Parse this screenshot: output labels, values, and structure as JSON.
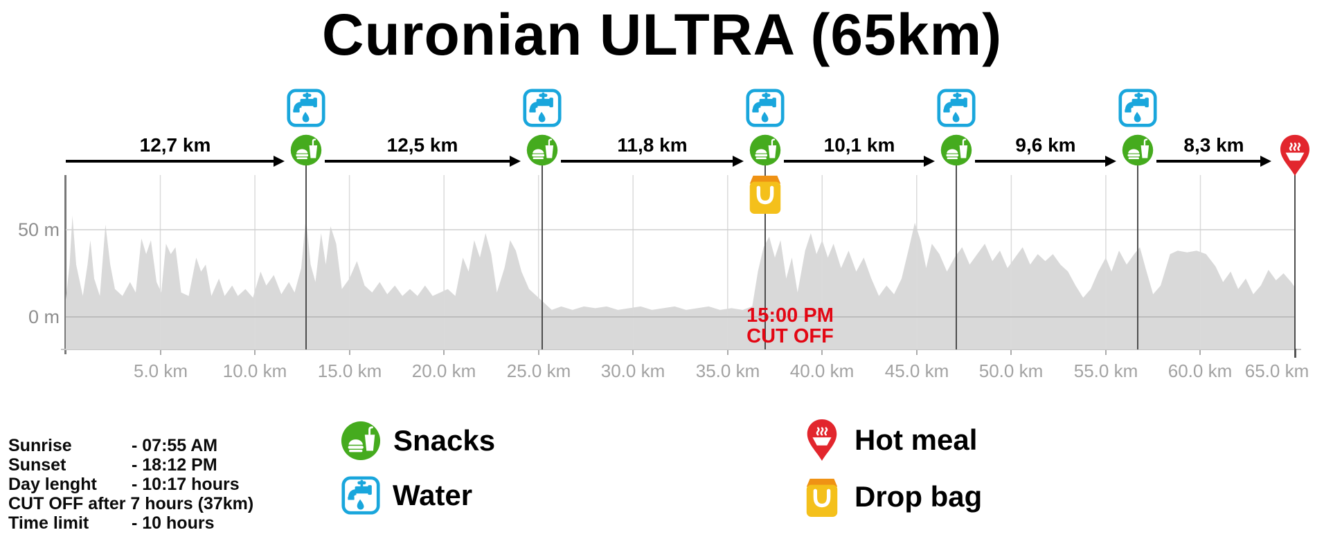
{
  "title": "Curonian ULTRA (65km)",
  "colors": {
    "snacks_green": "#45ab1e",
    "water_blue": "#19a6dc",
    "hotmeal_red": "#e2262d",
    "dropbag_yellow": "#f4c01b",
    "dropbag_orange": "#ef9214",
    "cutoff_red": "#e30613",
    "profile_fill": "#d9d9d9"
  },
  "chart_data": {
    "type": "area",
    "title": "Curonian ULTRA (65km)",
    "x_unit": "km",
    "y_unit": "m",
    "x_range": [
      0,
      65
    ],
    "y_gridlines_m": [
      0,
      50
    ],
    "y_ticks": [
      "50 m",
      "0 m"
    ],
    "x_ticks": [
      "5.0 km",
      "10.0 km",
      "15.0 km",
      "20.0 km",
      "25.0 km",
      "30.0 km",
      "35.0 km",
      "40.0 km",
      "45.0 km",
      "50.0 km",
      "55.0 km",
      "60.0 km",
      "65.0 km"
    ],
    "grid": true,
    "points": [
      [
        0,
        10
      ],
      [
        0.2,
        30
      ],
      [
        0.35,
        58
      ],
      [
        0.55,
        30
      ],
      [
        0.9,
        12
      ],
      [
        1.15,
        30
      ],
      [
        1.3,
        44
      ],
      [
        1.5,
        22
      ],
      [
        1.8,
        12
      ],
      [
        2.1,
        53
      ],
      [
        2.35,
        30
      ],
      [
        2.6,
        16
      ],
      [
        3,
        12
      ],
      [
        3.4,
        20
      ],
      [
        3.7,
        14
      ],
      [
        4,
        45
      ],
      [
        4.25,
        36
      ],
      [
        4.5,
        44
      ],
      [
        4.8,
        20
      ],
      [
        5.05,
        14
      ],
      [
        5.3,
        42
      ],
      [
        5.55,
        36
      ],
      [
        5.8,
        40
      ],
      [
        6.1,
        14
      ],
      [
        6.5,
        12
      ],
      [
        6.9,
        34
      ],
      [
        7.15,
        26
      ],
      [
        7.4,
        30
      ],
      [
        7.7,
        12
      ],
      [
        8.1,
        22
      ],
      [
        8.4,
        12
      ],
      [
        8.8,
        18
      ],
      [
        9.1,
        12
      ],
      [
        9.5,
        16
      ],
      [
        9.9,
        11
      ],
      [
        10.3,
        26
      ],
      [
        10.6,
        18
      ],
      [
        11,
        24
      ],
      [
        11.4,
        13
      ],
      [
        11.8,
        20
      ],
      [
        12.1,
        14
      ],
      [
        12.45,
        28
      ],
      [
        12.7,
        57
      ],
      [
        12.95,
        30
      ],
      [
        13.2,
        20
      ],
      [
        13.5,
        48
      ],
      [
        13.75,
        30
      ],
      [
        14,
        52
      ],
      [
        14.3,
        42
      ],
      [
        14.6,
        16
      ],
      [
        15,
        22
      ],
      [
        15.4,
        32
      ],
      [
        15.8,
        18
      ],
      [
        16.2,
        14
      ],
      [
        16.6,
        20
      ],
      [
        17,
        13
      ],
      [
        17.4,
        18
      ],
      [
        17.8,
        12
      ],
      [
        18.2,
        16
      ],
      [
        18.6,
        12
      ],
      [
        19,
        18
      ],
      [
        19.4,
        12
      ],
      [
        19.8,
        14
      ],
      [
        20.2,
        16
      ],
      [
        20.6,
        12
      ],
      [
        21,
        34
      ],
      [
        21.3,
        26
      ],
      [
        21.6,
        44
      ],
      [
        21.9,
        34
      ],
      [
        22.2,
        48
      ],
      [
        22.5,
        36
      ],
      [
        22.8,
        14
      ],
      [
        23.2,
        28
      ],
      [
        23.5,
        44
      ],
      [
        23.8,
        38
      ],
      [
        24.1,
        26
      ],
      [
        24.5,
        16
      ],
      [
        24.9,
        12
      ],
      [
        25.3,
        8
      ],
      [
        25.7,
        4
      ],
      [
        26.2,
        6
      ],
      [
        26.8,
        4
      ],
      [
        27.4,
        6
      ],
      [
        28,
        5
      ],
      [
        28.6,
        6
      ],
      [
        29.2,
        4
      ],
      [
        29.8,
        5
      ],
      [
        30.4,
        6
      ],
      [
        31,
        4
      ],
      [
        31.6,
        5
      ],
      [
        32.2,
        6
      ],
      [
        32.8,
        4
      ],
      [
        33.4,
        5
      ],
      [
        34,
        6
      ],
      [
        34.6,
        4
      ],
      [
        35.2,
        5
      ],
      [
        35.8,
        4
      ],
      [
        36.3,
        6
      ],
      [
        36.6,
        26
      ],
      [
        36.9,
        40
      ],
      [
        37.2,
        46
      ],
      [
        37.5,
        34
      ],
      [
        37.8,
        44
      ],
      [
        38.1,
        22
      ],
      [
        38.4,
        34
      ],
      [
        38.7,
        14
      ],
      [
        39.1,
        38
      ],
      [
        39.4,
        48
      ],
      [
        39.7,
        36
      ],
      [
        40,
        44
      ],
      [
        40.3,
        34
      ],
      [
        40.6,
        42
      ],
      [
        41,
        28
      ],
      [
        41.4,
        38
      ],
      [
        41.8,
        26
      ],
      [
        42.2,
        34
      ],
      [
        42.6,
        22
      ],
      [
        43,
        12
      ],
      [
        43.4,
        18
      ],
      [
        43.8,
        13
      ],
      [
        44.2,
        22
      ],
      [
        44.6,
        40
      ],
      [
        44.9,
        54
      ],
      [
        45.2,
        44
      ],
      [
        45.5,
        28
      ],
      [
        45.8,
        42
      ],
      [
        46.2,
        36
      ],
      [
        46.6,
        26
      ],
      [
        47,
        34
      ],
      [
        47.4,
        40
      ],
      [
        47.8,
        30
      ],
      [
        48.2,
        36
      ],
      [
        48.6,
        42
      ],
      [
        49,
        32
      ],
      [
        49.4,
        38
      ],
      [
        49.8,
        28
      ],
      [
        50.2,
        34
      ],
      [
        50.6,
        40
      ],
      [
        51,
        30
      ],
      [
        51.4,
        36
      ],
      [
        51.8,
        32
      ],
      [
        52.2,
        36
      ],
      [
        52.6,
        30
      ],
      [
        53,
        26
      ],
      [
        53.4,
        18
      ],
      [
        53.8,
        11
      ],
      [
        54.2,
        16
      ],
      [
        54.6,
        26
      ],
      [
        55,
        34
      ],
      [
        55.3,
        26
      ],
      [
        55.7,
        38
      ],
      [
        56.1,
        30
      ],
      [
        56.5,
        36
      ],
      [
        56.8,
        40
      ],
      [
        57.1,
        28
      ],
      [
        57.5,
        13
      ],
      [
        57.9,
        18
      ],
      [
        58.4,
        36
      ],
      [
        58.8,
        38
      ],
      [
        59.3,
        37
      ],
      [
        59.8,
        38
      ],
      [
        60.3,
        36
      ],
      [
        60.8,
        29
      ],
      [
        61.2,
        20
      ],
      [
        61.6,
        26
      ],
      [
        62,
        16
      ],
      [
        62.4,
        22
      ],
      [
        62.8,
        13
      ],
      [
        63.2,
        18
      ],
      [
        63.6,
        27
      ],
      [
        64,
        21
      ],
      [
        64.4,
        25
      ],
      [
        64.8,
        20
      ],
      [
        65,
        17
      ]
    ],
    "stations": [
      {
        "km": 12.7,
        "services": [
          "water",
          "snacks"
        ]
      },
      {
        "km": 25.2,
        "services": [
          "water",
          "snacks"
        ]
      },
      {
        "km": 37.0,
        "services": [
          "water",
          "snacks",
          "dropbag"
        ]
      },
      {
        "km": 47.1,
        "services": [
          "water",
          "snacks"
        ]
      },
      {
        "km": 56.7,
        "services": [
          "water",
          "snacks"
        ]
      },
      {
        "km": 65.0,
        "services": [
          "hotmeal"
        ]
      }
    ],
    "segments": [
      {
        "label": "12,7 km",
        "from_km": 0,
        "to_km": 12.7
      },
      {
        "label": "12,5 km",
        "from_km": 12.7,
        "to_km": 25.2
      },
      {
        "label": "11,8 km",
        "from_km": 25.2,
        "to_km": 37.0
      },
      {
        "label": "10,1 km",
        "from_km": 37.0,
        "to_km": 47.1
      },
      {
        "label": "9,6 km",
        "from_km": 47.1,
        "to_km": 56.7
      },
      {
        "label": "8,3 km",
        "from_km": 56.7,
        "to_km": 65.0
      }
    ],
    "cutoff_label": {
      "line1": "15:00 PM",
      "line2": "CUT OFF"
    }
  },
  "info": {
    "rows": [
      {
        "label": "Sunrise",
        "value": "- 07:55 AM"
      },
      {
        "label": "Sunset",
        "value": "- 18:12 PM"
      },
      {
        "label": "Day lenght",
        "value": "- 10:17 hours"
      },
      {
        "label": "CUT OFF after 7 hours (37km)",
        "value": ""
      },
      {
        "label": "Time limit",
        "value": "- 10 hours"
      }
    ]
  },
  "legend": {
    "snacks": "Snacks",
    "water": "Water",
    "hot_meal": "Hot meal",
    "drop_bag": "Drop bag"
  }
}
